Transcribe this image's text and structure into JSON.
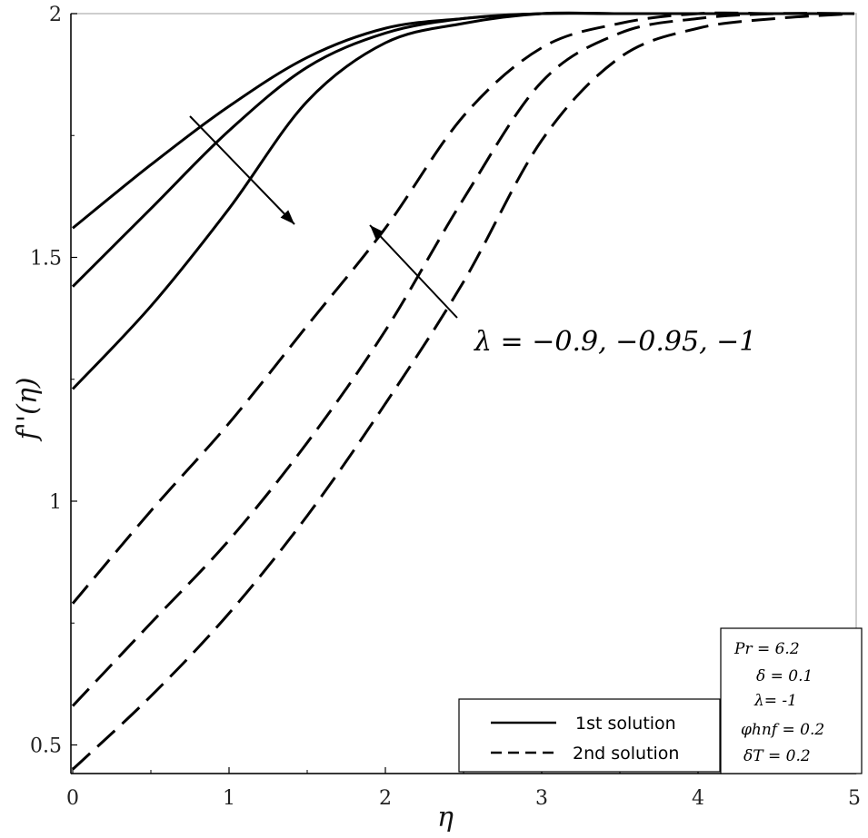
{
  "chart_data": {
    "type": "line",
    "title": "",
    "xlabel": "η",
    "ylabel": "f''(η)",
    "xlim": [
      0,
      5
    ],
    "ylim": [
      0.45,
      2
    ],
    "xticks": [
      0,
      1,
      2,
      3,
      4,
      5
    ],
    "yticks": [
      0.5,
      1,
      1.5,
      2
    ],
    "ytick_labels": [
      "0.5",
      "1",
      "1.5",
      "2"
    ],
    "grid": false,
    "legend_placement": "bottom-right",
    "legend": [
      {
        "label": "1st solution",
        "style": "solid"
      },
      {
        "label": "2nd solution",
        "style": "dashed"
      }
    ],
    "annotation": "λ = −0.9, −0.95, −1",
    "params": [
      "Pr = 6.2",
      "δ = 0.1",
      "λ=  -1",
      "φhnf = 0.2",
      "δT = 0.2"
    ],
    "series": [
      {
        "style": "solid",
        "group": "1st solution",
        "x": [
          0,
          0.5,
          1,
          1.5,
          2,
          2.5,
          3,
          3.5,
          4,
          4.5,
          5
        ],
        "y": [
          1.56,
          1.69,
          1.81,
          1.91,
          1.97,
          1.99,
          2.0,
          2.0,
          2.0,
          2.0,
          2.0
        ]
      },
      {
        "style": "solid",
        "group": "1st solution",
        "x": [
          0,
          0.5,
          1,
          1.5,
          2,
          2.5,
          3,
          3.5,
          4,
          4.5,
          5
        ],
        "y": [
          1.44,
          1.6,
          1.76,
          1.89,
          1.96,
          1.99,
          2.0,
          2.0,
          2.0,
          2.0,
          2.0
        ]
      },
      {
        "style": "solid",
        "group": "1st solution",
        "x": [
          0,
          0.5,
          1,
          1.5,
          2,
          2.5,
          3,
          3.5,
          4,
          4.5,
          5
        ],
        "y": [
          1.23,
          1.4,
          1.6,
          1.82,
          1.94,
          1.98,
          2.0,
          2.0,
          2.0,
          2.0,
          2.0
        ]
      },
      {
        "style": "dashed",
        "group": "2nd solution",
        "x": [
          0,
          0.5,
          1,
          1.5,
          2,
          2.5,
          3,
          3.5,
          4,
          4.5,
          5
        ],
        "y": [
          0.79,
          0.98,
          1.16,
          1.36,
          1.56,
          1.79,
          1.93,
          1.98,
          2.0,
          2.0,
          2.0
        ]
      },
      {
        "style": "dashed",
        "group": "2nd solution",
        "x": [
          0,
          0.5,
          1,
          1.5,
          2,
          2.5,
          3,
          3.5,
          4,
          4.5,
          5
        ],
        "y": [
          0.58,
          0.75,
          0.92,
          1.12,
          1.35,
          1.62,
          1.86,
          1.96,
          1.99,
          2.0,
          2.0
        ]
      },
      {
        "style": "dashed",
        "group": "2nd solution",
        "x": [
          0,
          0.5,
          1,
          1.5,
          2,
          2.5,
          3,
          3.5,
          4,
          4.5,
          5
        ],
        "y": [
          0.45,
          0.6,
          0.77,
          0.97,
          1.2,
          1.45,
          1.74,
          1.91,
          1.97,
          1.99,
          2.0
        ]
      }
    ]
  }
}
